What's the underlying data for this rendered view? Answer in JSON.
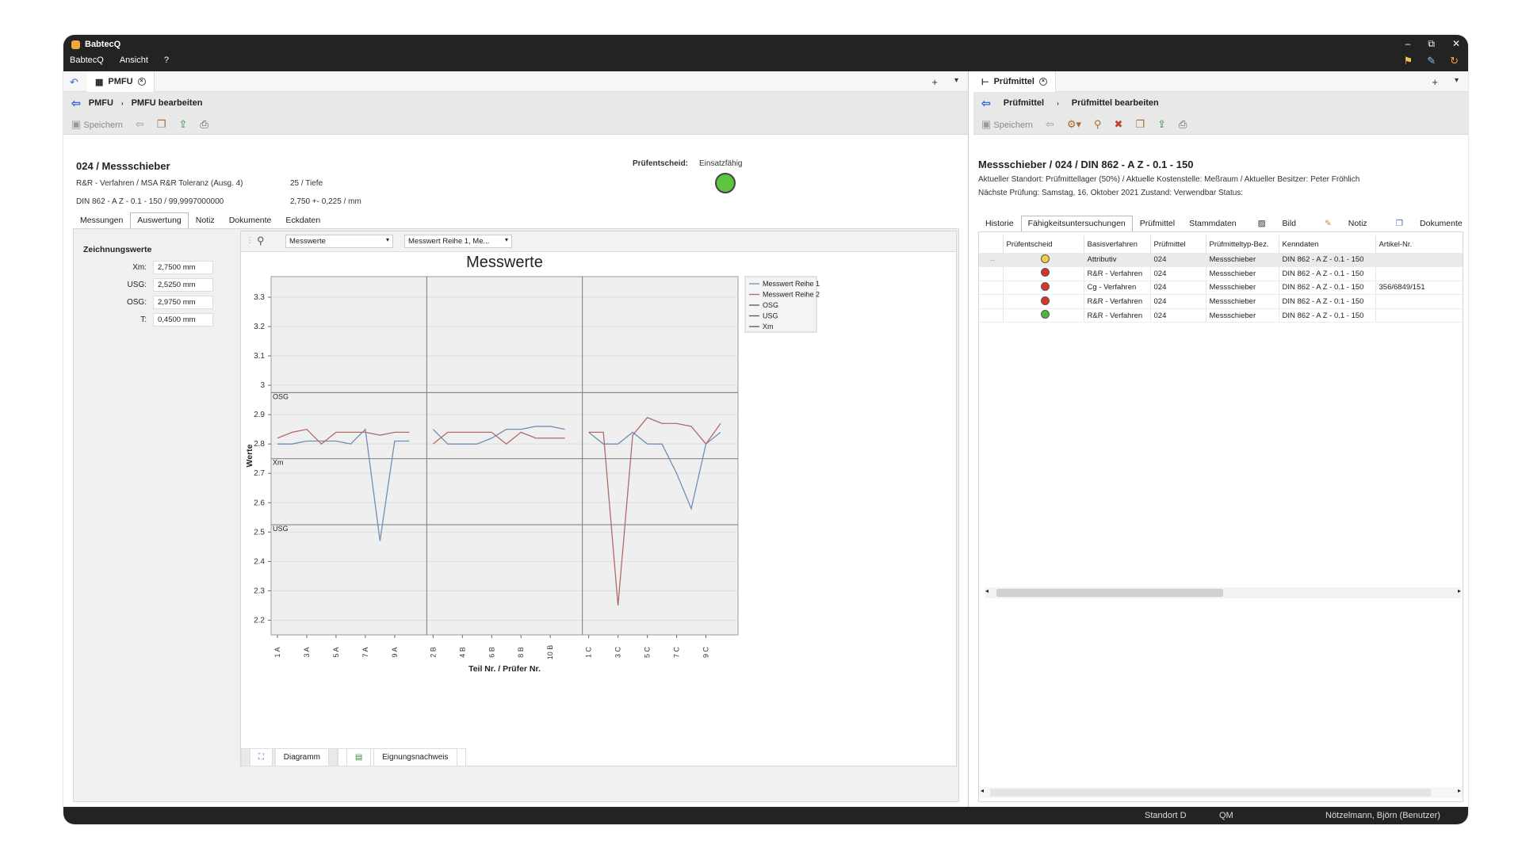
{
  "app": {
    "title": "BabtecQ",
    "window_controls": [
      "–",
      "⧉",
      "✕"
    ]
  },
  "menu": {
    "items": [
      "BabtecQ",
      "Ansicht",
      "?"
    ]
  },
  "left": {
    "tab_label": "PMFU",
    "breadcrumb": [
      "PMFU",
      "PMFU bearbeiten"
    ],
    "toolbar": {
      "save_label": "Speichern"
    },
    "header": {
      "title": "024 / Messschieber",
      "line1_left": "R&R - Verfahren / MSA R&R Toleranz (Ausg. 4)",
      "line1_right": "25 / Tiefe",
      "line2_left": "DIN 862 - A Z - 0.1 - 150 / 99,9997000000",
      "line2_right": "2,750 +- 0,225 / mm",
      "pruefentscheid_label": "Prüfentscheid:",
      "pruefentscheid_value": "Einsatzfähig",
      "status_color": "#5cc43f"
    },
    "subtabs": [
      "Messungen",
      "Auswertung",
      "Notiz",
      "Dokumente",
      "Eckdaten"
    ],
    "active_subtab": 1,
    "zeichnungswerte": {
      "title": "Zeichnungswerte",
      "fields": [
        {
          "label": "Xm:",
          "value": "2,7500 mm"
        },
        {
          "label": "USG:",
          "value": "2,5250 mm"
        },
        {
          "label": "OSG:",
          "value": "2,9750 mm"
        },
        {
          "label": "T:",
          "value": "0,4500 mm"
        }
      ]
    },
    "chart_toolbar": {
      "dropdown1": "Messwerte",
      "dropdown2": "Messwert Reihe 1, Me..."
    },
    "bottom_tabs": [
      "Diagramm",
      "Eignungsnachweis"
    ]
  },
  "chart_data": {
    "type": "line",
    "title": "Messwerte",
    "xlabel": "Teil Nr. / Prüfer Nr.",
    "ylabel": "Werte",
    "ylim": [
      2.15,
      3.37
    ],
    "yticks": [
      2.2,
      2.3,
      2.4,
      2.5,
      2.6,
      2.7,
      2.8,
      2.9,
      3,
      3.1,
      3.2,
      3.3
    ],
    "x_tick_labels": [
      "1 A",
      "3 A",
      "5 A",
      "7 A",
      "9 A",
      "2 B",
      "4 B",
      "6 B",
      "8 B",
      "10 B",
      "1 C",
      "3 C",
      "5 C",
      "7 C",
      "9 C"
    ],
    "groups": [
      "A",
      "B",
      "C"
    ],
    "points_per_group": 10,
    "series": [
      {
        "name": "Messwert Reihe 1",
        "color": "#6f8fb6",
        "values": [
          [
            2.8,
            2.8,
            2.81,
            2.81,
            2.81,
            2.8,
            2.85,
            2.47,
            2.81,
            2.81
          ],
          [
            2.85,
            2.8,
            2.8,
            2.8,
            2.82,
            2.85,
            2.85,
            2.86,
            2.86,
            2.85
          ],
          [
            2.84,
            2.8,
            2.8,
            2.84,
            2.8,
            2.8,
            2.7,
            2.58,
            2.8,
            2.84
          ]
        ]
      },
      {
        "name": "Messwert Reihe 2",
        "color": "#b06a6a",
        "values": [
          [
            2.82,
            2.84,
            2.85,
            2.8,
            2.84,
            2.84,
            2.84,
            2.83,
            2.84,
            2.84
          ],
          [
            2.8,
            2.84,
            2.84,
            2.84,
            2.84,
            2.8,
            2.84,
            2.82,
            2.82,
            2.82
          ],
          [
            2.84,
            2.84,
            2.25,
            2.83,
            2.89,
            2.87,
            2.87,
            2.86,
            2.8,
            2.87
          ]
        ]
      }
    ],
    "reference_lines": [
      {
        "name": "OSG",
        "value": 2.975
      },
      {
        "name": "Xm",
        "value": 2.75
      },
      {
        "name": "USG",
        "value": 2.525
      }
    ],
    "legend": [
      "Messwert Reihe 1",
      "Messwert Reihe 2",
      "OSG",
      "USG",
      "Xm"
    ],
    "legend_position": "right",
    "grid": true
  },
  "right": {
    "tab_label": "Prüfmittel",
    "breadcrumb": [
      "Prüfmittel",
      "Prüfmittel bearbeiten"
    ],
    "toolbar": {
      "save_label": "Speichern"
    },
    "header": {
      "title": "Messschieber / 024 / DIN 862 - A Z - 0.1 - 150",
      "line1": "Aktueller Standort: Prüfmittellager (50%) / Aktuelle Kostenstelle: Meßraum / Aktueller Besitzer: Peter Fröhlich",
      "line2": "Nächste Prüfung: Samstag, 16. Oktober 2021  Zustand: Verwendbar    Status:"
    },
    "subtabs": [
      "Historie",
      "Fähigkeitsuntersuchungen",
      "Prüfmittel",
      "Stammdaten",
      "Bild",
      "Notiz",
      "Dokumente"
    ],
    "active_subtab": 1,
    "table": {
      "columns": [
        "Prüfentscheid",
        "Basisverfahren",
        "Prüfmittel",
        "Prüfmitteltyp-Bez.",
        "Kenndaten",
        "Artikel-Nr."
      ],
      "rows": [
        {
          "status": "#f2d23a",
          "basis": "Attributiv",
          "pruefmittel": "024",
          "typ": "Messschieber",
          "kenndaten": "DIN 862 - A Z - 0.1 - 150",
          "artikel": ""
        },
        {
          "status": "#d9342b",
          "basis": "R&R - Verfahren",
          "pruefmittel": "024",
          "typ": "Messschieber",
          "kenndaten": "DIN 862 - A Z - 0.1 - 150",
          "artikel": ""
        },
        {
          "status": "#d9342b",
          "basis": "Cg - Verfahren",
          "pruefmittel": "024",
          "typ": "Messschieber",
          "kenndaten": "DIN 862 - A Z - 0.1 - 150",
          "artikel": "356/6849/151"
        },
        {
          "status": "#d9342b",
          "basis": "R&R - Verfahren",
          "pruefmittel": "024",
          "typ": "Messschieber",
          "kenndaten": "DIN 862 - A Z - 0.1 - 150",
          "artikel": ""
        },
        {
          "status": "#4cb83a",
          "basis": "R&R - Verfahren",
          "pruefmittel": "024",
          "typ": "Messschieber",
          "kenndaten": "DIN 862 - A Z - 0.1 - 150",
          "artikel": ""
        }
      ]
    }
  },
  "statusbar": {
    "location": "Standort D",
    "module": "QM",
    "user": "Nötzelmann, Björn (Benutzer)"
  }
}
